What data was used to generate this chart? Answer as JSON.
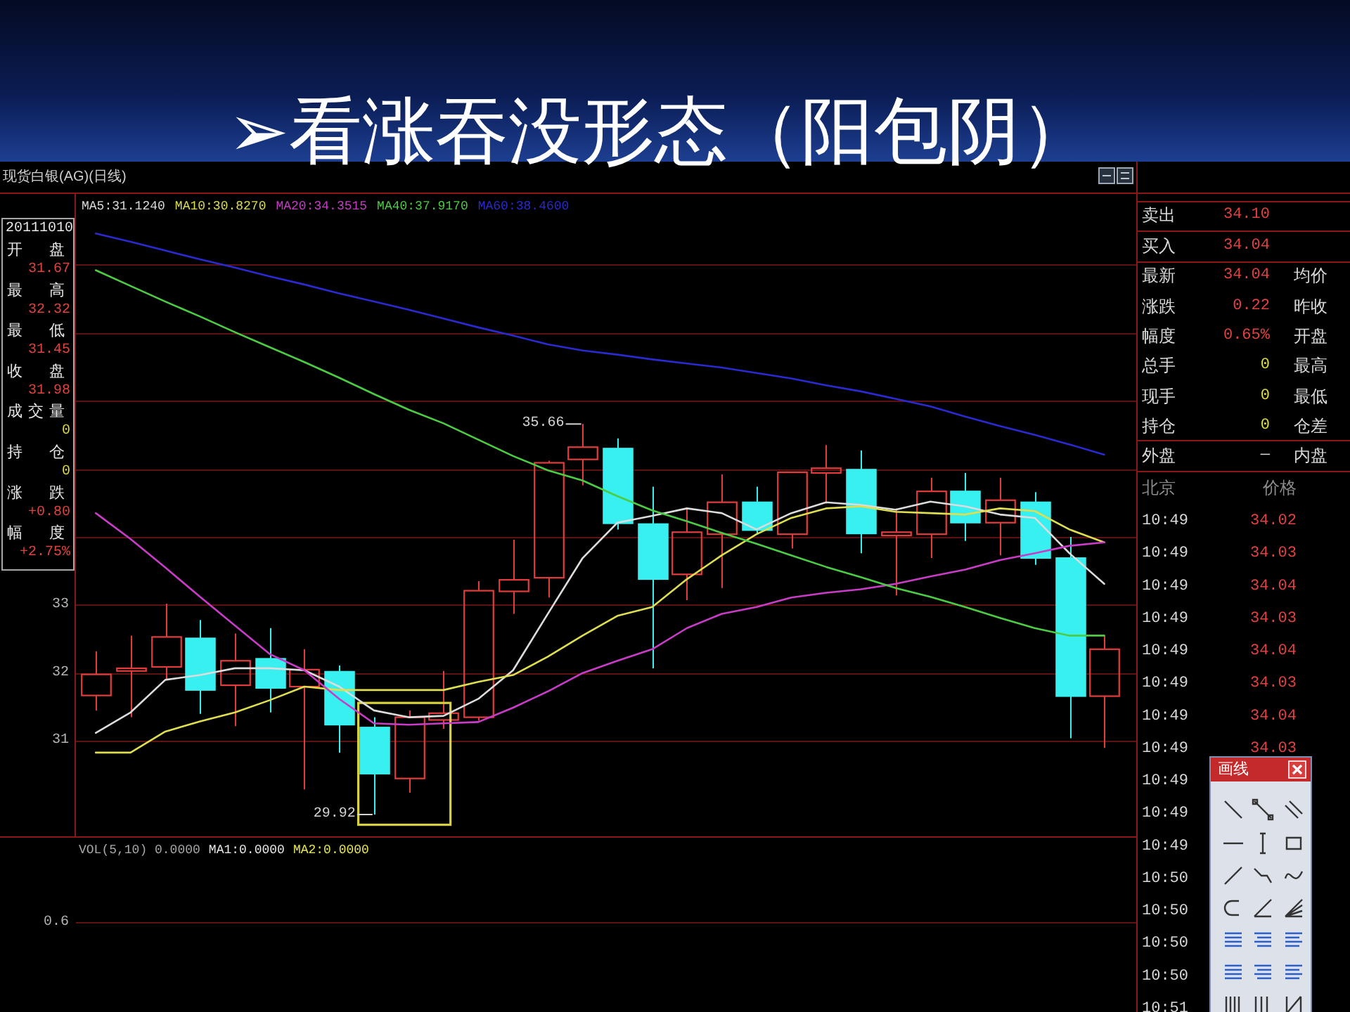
{
  "chart_data": [
    {
      "type": "candlestick",
      "title": "➢看涨吞没形态（阳包阴）",
      "subtitle": "现货白银(AG)(日线)",
      "categories": [
        null,
        null,
        null,
        null,
        null,
        null,
        null,
        null,
        null,
        null,
        null,
        null,
        null,
        null,
        null,
        null,
        null,
        null,
        null,
        null,
        null,
        null,
        null,
        null,
        null,
        null,
        null,
        null,
        null,
        null
      ],
      "ohlc": [
        [
          31.67,
          32.32,
          31.45,
          31.98
        ],
        [
          32.03,
          32.55,
          31.35,
          32.07
        ],
        [
          32.09,
          33.02,
          31.91,
          32.53
        ],
        [
          32.51,
          32.78,
          31.4,
          31.75
        ],
        [
          31.82,
          32.58,
          31.22,
          32.18
        ],
        [
          32.21,
          32.66,
          31.42,
          31.78
        ],
        [
          31.8,
          32.35,
          30.29,
          32.05
        ],
        [
          32.02,
          32.11,
          30.83,
          31.24
        ],
        [
          31.2,
          31.35,
          29.92,
          30.52
        ],
        [
          30.45,
          31.45,
          30.24,
          31.35
        ],
        [
          31.31,
          32.03,
          31.18,
          31.41
        ],
        [
          31.35,
          33.35,
          31.3,
          33.21
        ],
        [
          33.2,
          33.96,
          32.87,
          33.37
        ],
        [
          33.4,
          35.12,
          33.11,
          35.09
        ],
        [
          35.14,
          35.66,
          34.76,
          35.32
        ],
        [
          35.3,
          35.45,
          34.11,
          34.2
        ],
        [
          34.19,
          34.74,
          32.07,
          33.38
        ],
        [
          33.45,
          34.42,
          33.07,
          34.07
        ],
        [
          34.04,
          34.92,
          33.25,
          34.51
        ],
        [
          34.51,
          34.74,
          34.04,
          34.1
        ],
        [
          34.04,
          34.95,
          33.83,
          34.95
        ],
        [
          34.94,
          35.35,
          34.49,
          35.01
        ],
        [
          34.99,
          35.27,
          33.76,
          34.05
        ],
        [
          34.02,
          34.42,
          33.14,
          34.07
        ],
        [
          34.04,
          34.87,
          33.69,
          34.67
        ],
        [
          34.67,
          34.94,
          33.94,
          34.21
        ],
        [
          34.21,
          34.87,
          33.73,
          34.54
        ],
        [
          34.51,
          34.66,
          33.59,
          33.69
        ],
        [
          33.69,
          34.0,
          31.04,
          31.66
        ],
        [
          31.66,
          32.55,
          30.9,
          32.35
        ]
      ],
      "colors": [
        "#e23c3c",
        "#e23c3c",
        "#e23c3c",
        "#38f0f0",
        "#e23c3c",
        "#38f0f0",
        "#e23c3c",
        "#38f0f0",
        "#38f0f0",
        "#e23c3c",
        "#e23c3c",
        "#e23c3c",
        "#e23c3c",
        "#e23c3c",
        "#e23c3c",
        "#38f0f0",
        "#38f0f0",
        "#e23c3c",
        "#e23c3c",
        "#38f0f0",
        "#e23c3c",
        "#e23c3c",
        "#38f0f0",
        "#e23c3c",
        "#e23c3c",
        "#38f0f0",
        "#e23c3c",
        "#38f0f0",
        "#38f0f0",
        "#e23c3c"
      ],
      "series": [
        {
          "name": "MA5:31.1240",
          "type": "line",
          "color": "#dcdcdc",
          "values": [
            31.12,
            31.42,
            31.9,
            31.97,
            32.07,
            32.07,
            32.04,
            31.8,
            31.45,
            31.35,
            31.37,
            31.62,
            32.04,
            32.87,
            33.69,
            34.21,
            34.31,
            34.42,
            34.35,
            34.11,
            34.35,
            34.51,
            34.47,
            34.4,
            34.52,
            34.45,
            34.33,
            34.28,
            33.76,
            33.31
          ]
        },
        {
          "name": "MA10:30.8270",
          "type": "line",
          "color": "#dede50",
          "values": [
            30.83,
            30.83,
            31.14,
            31.29,
            31.42,
            31.6,
            31.8,
            31.75,
            31.75,
            31.75,
            31.75,
            31.87,
            31.97,
            32.24,
            32.55,
            32.84,
            32.97,
            33.38,
            33.73,
            34.04,
            34.28,
            34.42,
            34.45,
            34.37,
            34.35,
            34.33,
            34.42,
            34.38,
            34.11,
            33.92
          ]
        },
        {
          "name": "MA20:34.3515",
          "type": "line",
          "color": "#c83cc8",
          "values": [
            34.35,
            33.97,
            33.55,
            33.12,
            32.7,
            32.28,
            32.04,
            31.62,
            31.26,
            31.24,
            31.26,
            31.28,
            31.49,
            31.73,
            32.0,
            32.18,
            32.35,
            32.66,
            32.87,
            32.97,
            33.11,
            33.18,
            33.23,
            33.31,
            33.42,
            33.52,
            33.66,
            33.76,
            33.87,
            33.92
          ]
        },
        {
          "name": "MA40:37.9170",
          "type": "line",
          "color": "#4ccc44",
          "values": [
            37.92,
            37.69,
            37.46,
            37.24,
            37.01,
            36.79,
            36.57,
            36.34,
            36.1,
            35.87,
            35.67,
            35.43,
            35.19,
            34.98,
            34.83,
            34.6,
            34.39,
            34.23,
            34.06,
            33.9,
            33.73,
            33.56,
            33.41,
            33.25,
            33.12,
            32.97,
            32.81,
            32.66,
            32.55,
            32.55
          ]
        },
        {
          "name": "MA60:38.4600",
          "type": "line",
          "color": "#2a2ad0",
          "values": [
            38.46,
            38.34,
            38.21,
            38.08,
            37.96,
            37.83,
            37.71,
            37.58,
            37.46,
            37.34,
            37.21,
            37.08,
            36.96,
            36.83,
            36.74,
            36.68,
            36.61,
            36.55,
            36.49,
            36.41,
            36.33,
            36.23,
            36.14,
            36.03,
            35.92,
            35.77,
            35.63,
            35.5,
            35.36,
            35.21
          ]
        }
      ],
      "ylim": [
        29.6,
        39.0
      ],
      "yticks": [
        31,
        32,
        33,
        {
          "value": 34,
          "label": null
        },
        {
          "value": 35,
          "label": null
        },
        {
          "value": 36,
          "label": null
        },
        {
          "value": 37,
          "label": null
        },
        {
          "value": 38,
          "label": null
        }
      ],
      "grid": "y",
      "legend": "top left",
      "tick_labels": "y",
      "annotations": [
        "35.66",
        "29.92",
        "20111010",
        "开盘",
        "31.67",
        "最高",
        "32.32",
        "最低",
        "31.45",
        "收盘",
        "31.98",
        "成交量",
        "0",
        "持仓",
        "0",
        "涨跌",
        "+0.80",
        "幅度",
        "+2.75%"
      ]
    },
    {
      "type": "other",
      "annotations": [
        "卖出",
        "34.10",
        "买入",
        "34.04",
        "最新",
        "34.04",
        "均价",
        "涨跌",
        "0.22",
        "昨收",
        "幅度",
        "0.65%",
        "开盘",
        "总手",
        "0",
        "最高",
        "现手",
        "0",
        "最低",
        "持仓",
        "0",
        "仓差",
        "外盘",
        "—",
        "内盘",
        "北京",
        "价格",
        "10:49",
        "34.02",
        "10:49",
        "34.03",
        "10:49",
        "34.04",
        "10:49",
        "34.03",
        "10:49",
        "34.04",
        "10:49",
        "34.03",
        "10:49",
        "34.04",
        "10:49",
        "34.03",
        "10:49",
        "10:49",
        "10:49",
        "10:50",
        "10:50",
        "10:50",
        "10:50",
        "10:51",
        "画线"
      ]
    },
    {
      "type": "other",
      "annotations": [
        "VOL(5,10) 0.0000",
        "MA1:0.0000",
        "MA2:0.0000",
        "0.6"
      ]
    }
  ]
}
